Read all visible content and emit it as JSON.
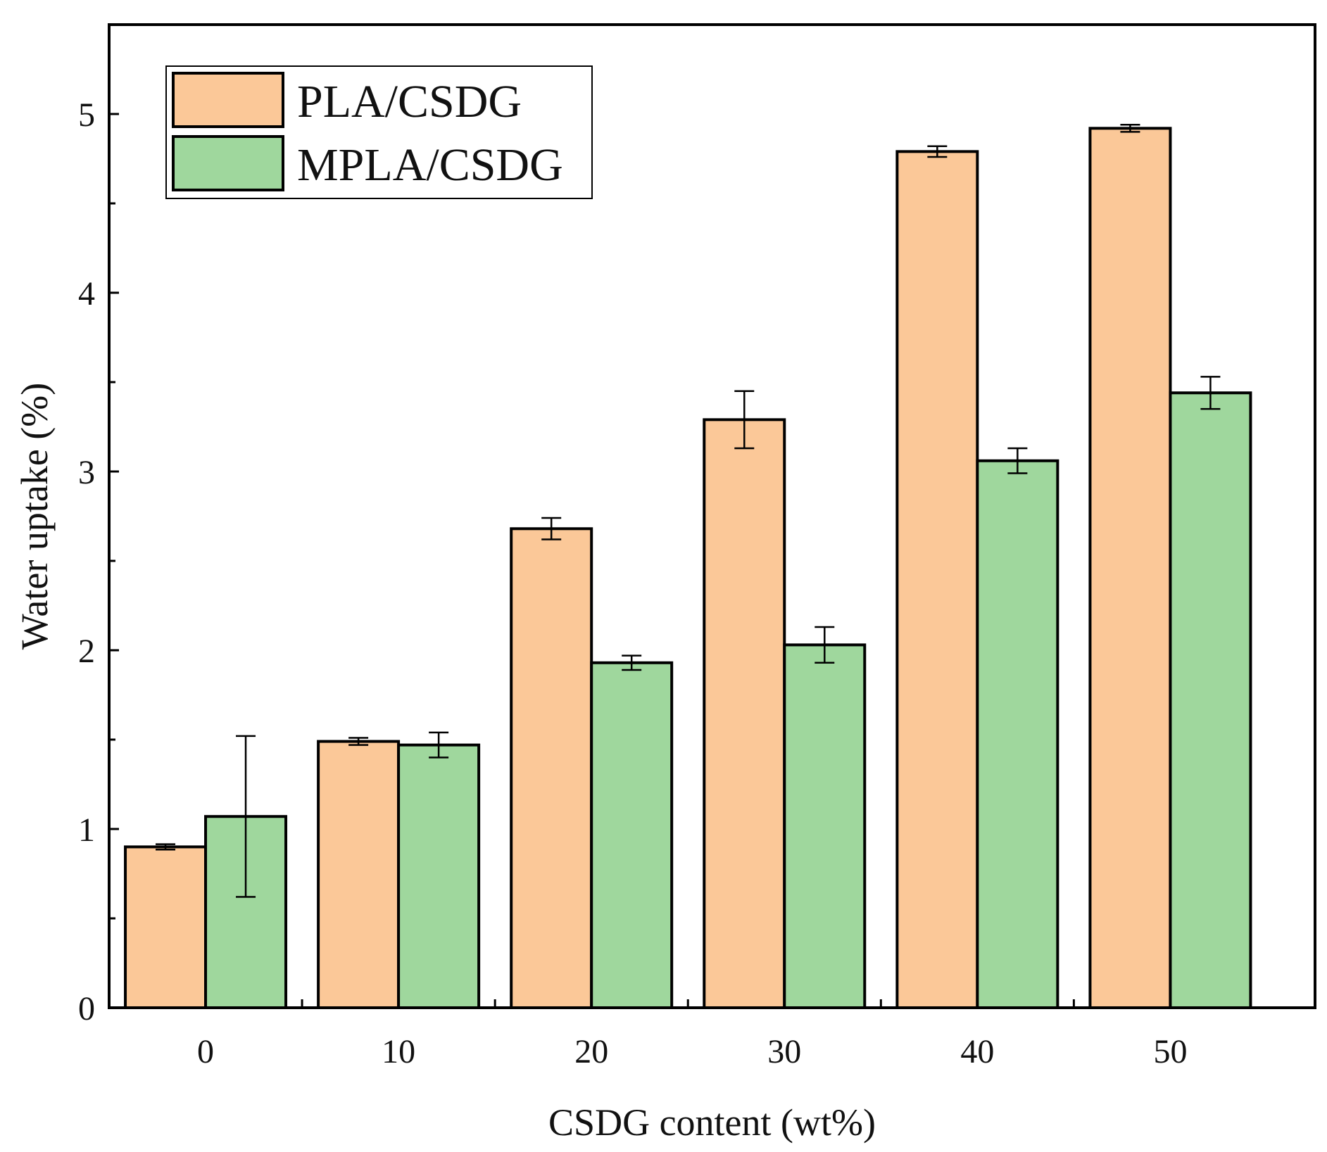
{
  "chart_data": {
    "type": "bar",
    "title": "",
    "xlabel": "CSDG content (wt%)",
    "ylabel": "Water uptake (%)",
    "categories": [
      "0",
      "10",
      "20",
      "30",
      "40",
      "50"
    ],
    "ylim": [
      0,
      5.5
    ],
    "yticks": [
      "0",
      "1",
      "2",
      "3",
      "4",
      "5"
    ],
    "grid": false,
    "legend_position": "top-left",
    "series": [
      {
        "name": "PLA/CSDG",
        "color": "#FBC898",
        "values": [
          0.9,
          1.49,
          2.68,
          3.29,
          4.79,
          4.92
        ],
        "errors": [
          0.015,
          0.02,
          0.06,
          0.16,
          0.03,
          0.02
        ]
      },
      {
        "name": "MPLA/CSDG",
        "color": "#9FD79D",
        "values": [
          1.07,
          1.47,
          1.93,
          2.03,
          3.06,
          3.44
        ],
        "errors": [
          0.45,
          0.07,
          0.04,
          0.1,
          0.07,
          0.09
        ]
      }
    ]
  }
}
